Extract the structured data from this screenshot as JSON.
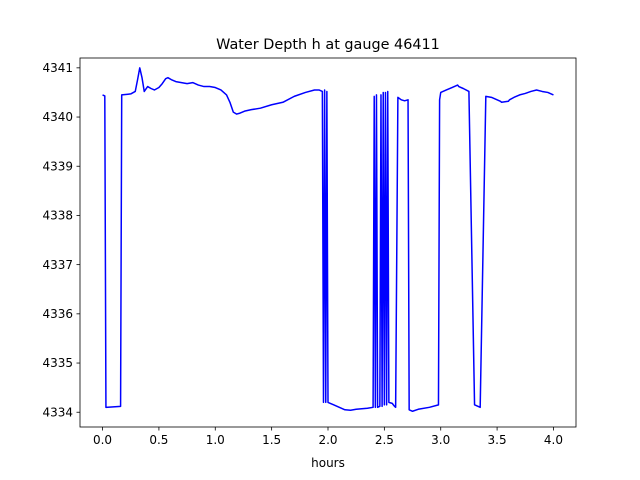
{
  "chart_data": {
    "type": "line",
    "title": "Water Depth h at gauge 46411",
    "xlabel": "hours",
    "ylabel": "",
    "xlim": [
      -0.2,
      4.2
    ],
    "ylim": [
      4333.7,
      4341.2
    ],
    "x_ticks": [
      0.0,
      0.5,
      1.0,
      1.5,
      2.0,
      2.5,
      3.0,
      3.5,
      4.0
    ],
    "x_tick_labels": [
      "0.0",
      "0.5",
      "1.0",
      "1.5",
      "2.0",
      "2.5",
      "3.0",
      "3.5",
      "4.0"
    ],
    "y_ticks": [
      4334,
      4335,
      4336,
      4337,
      4338,
      4339,
      4340,
      4341
    ],
    "y_tick_labels": [
      "4334",
      "4335",
      "4336",
      "4337",
      "4338",
      "4339",
      "4340",
      "4341"
    ],
    "grid": false,
    "series": [
      {
        "color": "#0000ff",
        "x": [
          0.0,
          0.02,
          0.03,
          0.16,
          0.17,
          0.25,
          0.29,
          0.31,
          0.33,
          0.35,
          0.37,
          0.4,
          0.43,
          0.46,
          0.5,
          0.53,
          0.56,
          0.58,
          0.61,
          0.65,
          0.7,
          0.75,
          0.8,
          0.85,
          0.9,
          0.95,
          1.0,
          1.05,
          1.1,
          1.13,
          1.16,
          1.19,
          1.22,
          1.26,
          1.32,
          1.4,
          1.5,
          1.6,
          1.7,
          1.8,
          1.88,
          1.92,
          1.95,
          1.96,
          1.97,
          1.98,
          1.99,
          2.0,
          2.05,
          2.1,
          2.15,
          2.2,
          2.25,
          2.3,
          2.35,
          2.4,
          2.41,
          2.42,
          2.43,
          2.44,
          2.46,
          2.47,
          2.48,
          2.49,
          2.5,
          2.51,
          2.52,
          2.53,
          2.54,
          2.57,
          2.58,
          2.59,
          2.6,
          2.62,
          2.65,
          2.68,
          2.71,
          2.72,
          2.75,
          2.8,
          2.9,
          2.98,
          2.99,
          3.0,
          3.05,
          3.1,
          3.15,
          3.16,
          3.2,
          3.25,
          3.3,
          3.35,
          3.4,
          3.45,
          3.5,
          3.53,
          3.54,
          3.6,
          3.61,
          3.65,
          3.7,
          3.75,
          3.8,
          3.85,
          3.9,
          3.95,
          4.0
        ],
        "y": [
          4340.45,
          4340.43,
          4334.1,
          4334.12,
          4340.45,
          4340.47,
          4340.52,
          4340.75,
          4341.0,
          4340.8,
          4340.52,
          4340.62,
          4340.58,
          4340.55,
          4340.6,
          4340.68,
          4340.78,
          4340.8,
          4340.76,
          4340.72,
          4340.7,
          4340.68,
          4340.7,
          4340.65,
          4340.62,
          4340.62,
          4340.6,
          4340.55,
          4340.45,
          4340.3,
          4340.1,
          4340.06,
          4340.08,
          4340.12,
          4340.15,
          4340.18,
          4340.25,
          4340.3,
          4340.42,
          4340.5,
          4340.55,
          4340.55,
          4340.52,
          4334.2,
          4340.55,
          4334.2,
          4340.52,
          4334.2,
          4334.15,
          4334.1,
          4334.05,
          4334.04,
          4334.06,
          4334.07,
          4334.08,
          4334.1,
          4340.42,
          4334.1,
          4340.45,
          4334.1,
          4334.12,
          4340.45,
          4334.12,
          4340.5,
          4334.15,
          4340.5,
          4334.15,
          4340.52,
          4334.2,
          4334.18,
          4334.15,
          4334.12,
          4334.1,
          4340.4,
          4340.35,
          4340.33,
          4340.35,
          4334.05,
          4334.02,
          4334.06,
          4334.1,
          4334.15,
          4340.35,
          4340.5,
          4340.55,
          4340.6,
          4340.65,
          4340.62,
          4340.58,
          4340.52,
          4334.15,
          4334.1,
          4340.42,
          4340.4,
          4340.35,
          4340.32,
          4340.3,
          4340.32,
          4340.35,
          4340.4,
          4340.45,
          4340.48,
          4340.52,
          4340.55,
          4340.52,
          4340.5,
          4340.45
        ]
      }
    ]
  }
}
